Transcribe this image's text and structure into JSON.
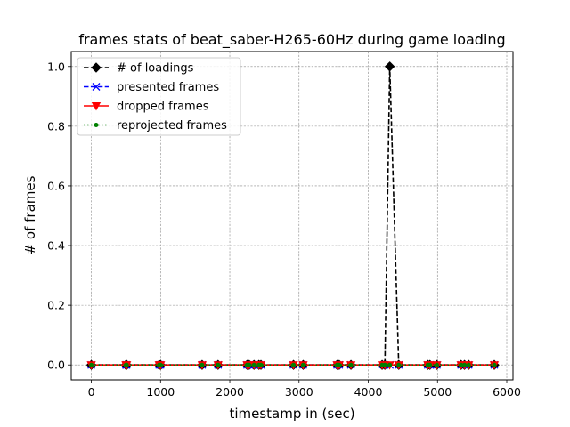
{
  "chart_data": {
    "type": "line",
    "title": "frames stats of beat_saber-H265-60Hz during game loading",
    "xlabel": "timestamp in (sec)",
    "ylabel": "# of frames",
    "xlim": [
      -290,
      6090
    ],
    "ylim": [
      -0.05,
      1.05
    ],
    "xticks": [
      0,
      1000,
      2000,
      3000,
      4000,
      5000,
      6000
    ],
    "xtick_labels": [
      "0",
      "1000",
      "2000",
      "3000",
      "4000",
      "5000",
      "6000"
    ],
    "yticks": [
      0.0,
      0.2,
      0.4,
      0.6,
      0.8,
      1.0
    ],
    "ytick_labels": [
      "0.0",
      "0.2",
      "0.4",
      "0.6",
      "0.8",
      "1.0"
    ],
    "grid": true,
    "legend_position": "top-left",
    "x": [
      0,
      500,
      510,
      980,
      1000,
      1600,
      1830,
      2250,
      2280,
      2350,
      2420,
      2450,
      2920,
      3060,
      3550,
      3580,
      3750,
      4200,
      4240,
      4310,
      4440,
      4860,
      4890,
      4990,
      5340,
      5390,
      5450,
      5820
    ],
    "series": [
      {
        "name": "# of loadings",
        "color": "#000000",
        "linestyle": "dashed",
        "marker": "diamond",
        "values": [
          0,
          0,
          0,
          0,
          0,
          0,
          0,
          0,
          0,
          0,
          0,
          0,
          0,
          0,
          0,
          0,
          0,
          0,
          0,
          1,
          0,
          0,
          0,
          0,
          0,
          0,
          0,
          0
        ]
      },
      {
        "name": "presented frames",
        "color": "#0000ff",
        "linestyle": "dashed",
        "marker": "x",
        "values": [
          0,
          0,
          0,
          0,
          0,
          0,
          0,
          0,
          0,
          0,
          0,
          0,
          0,
          0,
          0,
          0,
          0,
          0,
          0,
          0,
          0,
          0,
          0,
          0,
          0,
          0,
          0,
          0
        ]
      },
      {
        "name": "dropped frames",
        "color": "#ff0000",
        "linestyle": "solid",
        "marker": "triangle-down",
        "values": [
          0,
          0,
          0,
          0,
          0,
          0,
          0,
          0,
          0,
          0,
          0,
          0,
          0,
          0,
          0,
          0,
          0,
          0,
          0,
          0,
          0,
          0,
          0,
          0,
          0,
          0,
          0,
          0
        ]
      },
      {
        "name": "reprojected frames",
        "color": "#008000",
        "linestyle": "dotted",
        "marker": "dot",
        "values": [
          0,
          0,
          0,
          0,
          0,
          0,
          0,
          0,
          0,
          0,
          0,
          0,
          0,
          0,
          0,
          0,
          0,
          0,
          0,
          0,
          0,
          0,
          0,
          0,
          0,
          0,
          0,
          0
        ]
      }
    ]
  }
}
